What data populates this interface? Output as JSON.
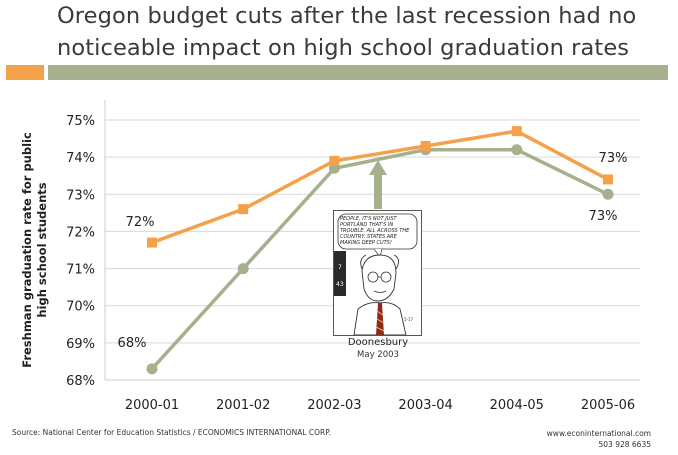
{
  "title_lines": [
    "Oregon budget cuts after the last recession had no",
    "noticeable impact on high school graduation rates"
  ],
  "colors": {
    "oregon": "#f4a14a",
    "national": "#a5b08d",
    "grid": "#d9d9d9"
  },
  "chart_data": {
    "type": "line",
    "categories": [
      "2000-01",
      "2001-02",
      "2002-03",
      "2003-04",
      "2004-05",
      "2005-06"
    ],
    "series": [
      {
        "key": "orange",
        "values": [
          71.7,
          72.6,
          73.9,
          74.3,
          74.7,
          73.4
        ]
      },
      {
        "key": "green",
        "values": [
          68.3,
          71.0,
          73.7,
          74.2,
          74.2,
          73.0
        ]
      }
    ],
    "ylabel": "Freshman graduation rate for public high school students",
    "ylim": [
      68,
      75
    ],
    "yticks": [
      "68%",
      "69%",
      "70%",
      "71%",
      "72%",
      "73%",
      "74%",
      "75%"
    ],
    "annotations": {
      "orange_start": "72%",
      "green_start": "68%",
      "orange_end": "73%",
      "green_end": "73%"
    },
    "grid": "horizontal"
  },
  "cartoon": {
    "caption": "Doonesbury",
    "date": "May 2003",
    "speech": "PEOPLE, IT'S NOT JUST PORTLAND THAT'S IN TROUBLE. ALL ACROSS THE COUNTRY, STATES ARE MAKING DEEP CUTS!",
    "numbers": [
      "7",
      "43"
    ],
    "sign": "5-17"
  },
  "source": "Source: National Center for Education Statistics / ECONOMICS INTERNATIONAL CORP.",
  "website": "www.econinternational.com",
  "phone": "503 928 6635"
}
